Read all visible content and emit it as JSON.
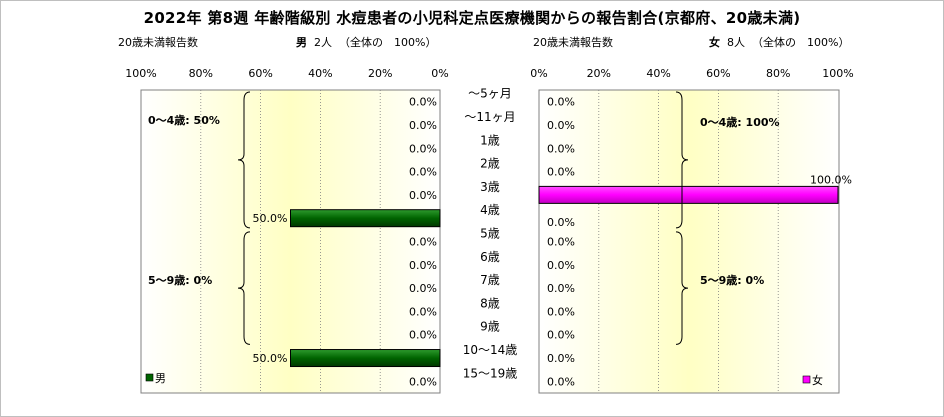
{
  "title": "2022年 第8週 年齢階級別 水痘患者の小児科定点医療機関からの報告割合(京都府、20歳未満)",
  "left_header": {
    "count_label": "20歳未満報告数",
    "sex": "男",
    "count": "2人",
    "total": "（全体の　100%）"
  },
  "right_header": {
    "count_label": "20歳未満報告数",
    "sex": "女",
    "count": "8人",
    "total": "（全体の　100%）"
  },
  "chart_data": [
    {
      "type": "bar",
      "orientation": "horizontal",
      "direction": "right-to-left",
      "categories": [
        "～5ヶ月",
        "～11ヶ月",
        "1歳",
        "2歳",
        "3歳",
        "4歳",
        "5歳",
        "6歳",
        "7歳",
        "8歳",
        "9歳",
        "10～14歳",
        "15～19歳"
      ],
      "series": [
        {
          "name": "男",
          "values": [
            0,
            0,
            0,
            0,
            0,
            50,
            0,
            0,
            0,
            0,
            0,
            50,
            0
          ],
          "color": "#006400"
        }
      ],
      "data_labels": [
        "0.0%",
        "0.0%",
        "0.0%",
        "0.0%",
        "0.0%",
        "50.0%",
        "0.0%",
        "0.0%",
        "0.0%",
        "0.0%",
        "0.0%",
        "50.0%",
        "0.0%"
      ],
      "xlim": [
        0,
        100
      ],
      "x_ticks": [
        "100%",
        "80%",
        "60%",
        "40%",
        "20%",
        "0%"
      ],
      "legend": "bottom-left",
      "groups": [
        {
          "label": "0～4歳: 50%",
          "from": "～5ヶ月",
          "to": "4歳"
        },
        {
          "label": "5～9歳: 0%",
          "from": "5歳",
          "to": "9歳"
        }
      ],
      "grid": true
    },
    {
      "type": "bar",
      "orientation": "horizontal",
      "direction": "left-to-right",
      "categories": [
        "～5ヶ月",
        "～11ヶ月",
        "1歳",
        "2歳",
        "3歳",
        "4歳",
        "5歳",
        "6歳",
        "7歳",
        "8歳",
        "9歳",
        "10～14歳",
        "15～19歳"
      ],
      "series": [
        {
          "name": "女",
          "values": [
            0,
            0,
            0,
            0,
            100,
            0,
            0,
            0,
            0,
            0,
            0,
            0,
            0
          ],
          "color": "#ff00ff"
        }
      ],
      "data_labels": [
        "0.0%",
        "0.0%",
        "0.0%",
        "0.0%",
        "100.0%",
        "0.0%",
        "0.0%",
        "0.0%",
        "0.0%",
        "0.0%",
        "0.0%",
        "0.0%",
        "0.0%"
      ],
      "xlim": [
        0,
        100
      ],
      "x_ticks": [
        "0%",
        "20%",
        "40%",
        "60%",
        "80%",
        "100%"
      ],
      "legend": "bottom-right",
      "groups": [
        {
          "label": "0～4歳: 100%",
          "from": "～5ヶ月",
          "to": "4歳"
        },
        {
          "label": "5～9歳: 0%",
          "from": "5歳",
          "to": "9歳"
        }
      ],
      "grid": true
    }
  ]
}
